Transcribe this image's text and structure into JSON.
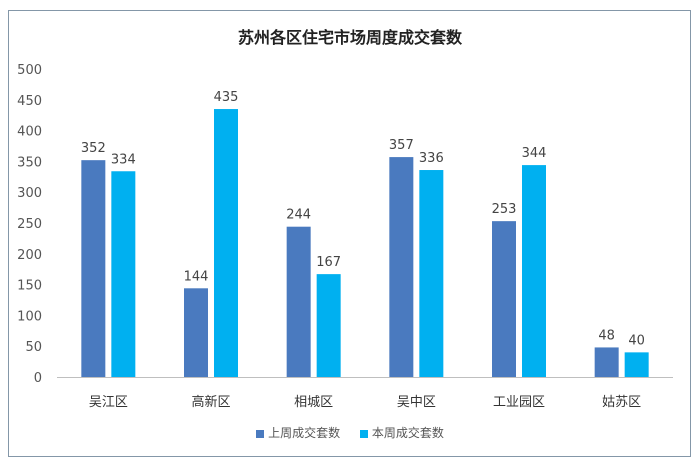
{
  "chart_data": {
    "type": "bar",
    "title": "苏州各区住宅市场周度成交套数",
    "categories": [
      "吴江区",
      "高新区",
      "相城区",
      "吴中区",
      "工业园区",
      "姑苏区"
    ],
    "series": [
      {
        "name": "上周成交套数",
        "color": "#4a7abf",
        "values": [
          352,
          144,
          244,
          357,
          253,
          48
        ]
      },
      {
        "name": "本周成交套数",
        "color": "#00b0f0",
        "values": [
          334,
          435,
          167,
          336,
          344,
          40
        ]
      }
    ],
    "yticks": [
      "0",
      "50",
      "100",
      "150",
      "200",
      "250",
      "300",
      "350",
      "400",
      "450",
      "500"
    ],
    "ylim": [
      0,
      500
    ],
    "xlabel": "",
    "ylabel": "",
    "grid": false,
    "legend": "bottom"
  }
}
